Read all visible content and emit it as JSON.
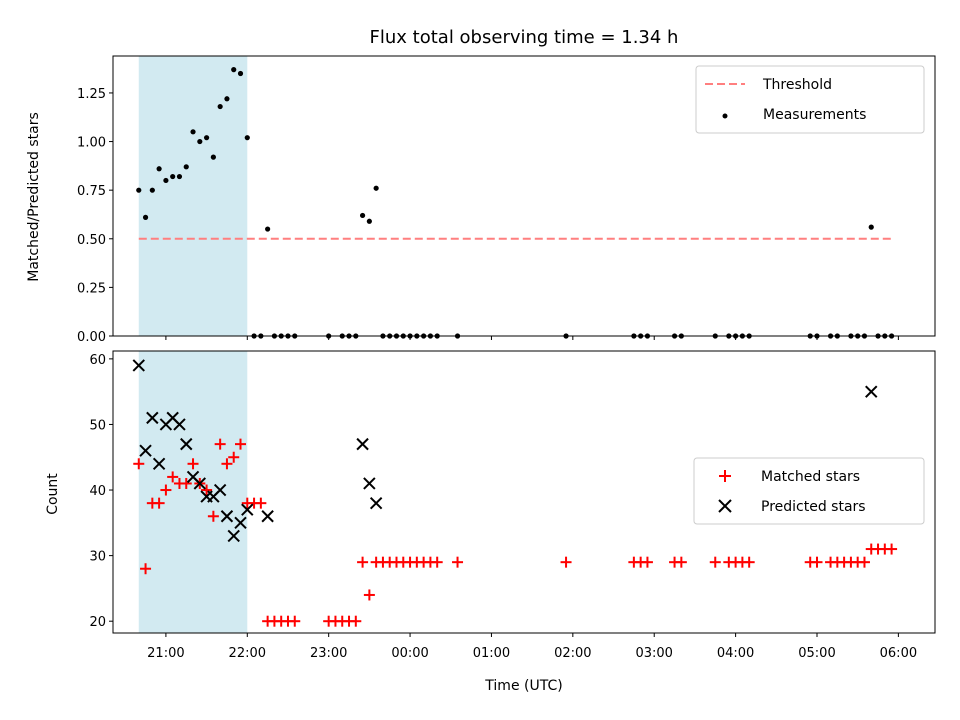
{
  "chart_data": [
    {
      "type": "scatter",
      "title": "Flux total observing time = 1.34 h",
      "xlabel": "",
      "ylabel": "Matched/Predicted stars",
      "ylim": [
        0,
        1.44
      ],
      "yticks": [
        "0.00",
        "0.25",
        "0.50",
        "0.75",
        "1.00",
        "1.25"
      ],
      "shaded_region": {
        "x_start": "20:40",
        "x_end": "22:00",
        "color": "#add8e6"
      },
      "threshold": {
        "name": "Threshold",
        "value": 0.5,
        "x_start": "20:40",
        "x_end": "05:55",
        "color": "#ff7f7f",
        "style": "dashed"
      },
      "series": [
        {
          "name": "Measurements",
          "color": "#000000",
          "marker": "dot",
          "points": [
            [
              "20:40",
              0.75
            ],
            [
              "20:45",
              0.61
            ],
            [
              "20:50",
              0.75
            ],
            [
              "20:55",
              0.86
            ],
            [
              "21:00",
              0.8
            ],
            [
              "21:05",
              0.82
            ],
            [
              "21:10",
              0.82
            ],
            [
              "21:15",
              0.87
            ],
            [
              "21:20",
              1.05
            ],
            [
              "21:25",
              1.0
            ],
            [
              "21:30",
              1.02
            ],
            [
              "21:35",
              0.92
            ],
            [
              "21:40",
              1.18
            ],
            [
              "21:45",
              1.22
            ],
            [
              "21:50",
              1.37
            ],
            [
              "21:55",
              1.35
            ],
            [
              "22:00",
              1.02
            ],
            [
              "22:05",
              0
            ],
            [
              "22:10",
              0
            ],
            [
              "22:15",
              0.55
            ],
            [
              "22:20",
              0
            ],
            [
              "22:25",
              0
            ],
            [
              "22:30",
              0
            ],
            [
              "22:35",
              0
            ],
            [
              "23:00",
              0
            ],
            [
              "23:10",
              0
            ],
            [
              "23:15",
              0
            ],
            [
              "23:20",
              0
            ],
            [
              "23:25",
              0.62
            ],
            [
              "23:30",
              0.59
            ],
            [
              "23:35",
              0.76
            ],
            [
              "23:40",
              0
            ],
            [
              "23:45",
              0
            ],
            [
              "23:50",
              0
            ],
            [
              "23:55",
              0
            ],
            [
              "00:00",
              0
            ],
            [
              "00:05",
              0
            ],
            [
              "00:10",
              0
            ],
            [
              "00:15",
              0
            ],
            [
              "00:20",
              0
            ],
            [
              "00:35",
              0
            ],
            [
              "01:55",
              0
            ],
            [
              "02:45",
              0
            ],
            [
              "02:50",
              0
            ],
            [
              "02:55",
              0
            ],
            [
              "03:15",
              0
            ],
            [
              "03:20",
              0
            ],
            [
              "03:45",
              0
            ],
            [
              "03:55",
              0
            ],
            [
              "04:00",
              0
            ],
            [
              "04:05",
              0
            ],
            [
              "04:10",
              0
            ],
            [
              "04:55",
              0
            ],
            [
              "05:00",
              0
            ],
            [
              "05:10",
              0
            ],
            [
              "05:15",
              0
            ],
            [
              "05:25",
              0
            ],
            [
              "05:30",
              0
            ],
            [
              "05:35",
              0
            ],
            [
              "05:40",
              0.56
            ],
            [
              "05:45",
              0
            ],
            [
              "05:50",
              0
            ],
            [
              "05:55",
              0
            ]
          ]
        }
      ],
      "legend": {
        "position": "top-right",
        "entries": [
          "Threshold",
          "Measurements"
        ]
      }
    },
    {
      "type": "scatter",
      "title": "",
      "xlabel": "Time (UTC)",
      "ylabel": "Count",
      "ylim": [
        18.2,
        61.2
      ],
      "yticks": [
        "20",
        "30",
        "40",
        "50",
        "60"
      ],
      "xticks": [
        "21:00",
        "22:00",
        "23:00",
        "00:00",
        "01:00",
        "02:00",
        "03:00",
        "04:00",
        "05:00",
        "06:00"
      ],
      "shaded_region": {
        "x_start": "20:40",
        "x_end": "22:00",
        "color": "#add8e6"
      },
      "series": [
        {
          "name": "Matched stars",
          "color": "#ff0000",
          "marker": "plus",
          "points": [
            [
              "20:40",
              44
            ],
            [
              "20:45",
              28
            ],
            [
              "20:50",
              38
            ],
            [
              "20:55",
              38
            ],
            [
              "21:00",
              40
            ],
            [
              "21:05",
              42
            ],
            [
              "21:10",
              41
            ],
            [
              "21:15",
              41
            ],
            [
              "21:20",
              44
            ],
            [
              "21:25",
              41
            ],
            [
              "21:30",
              40
            ],
            [
              "21:35",
              36
            ],
            [
              "21:40",
              47
            ],
            [
              "21:45",
              44
            ],
            [
              "21:50",
              45
            ],
            [
              "21:55",
              47
            ],
            [
              "22:00",
              38
            ],
            [
              "22:05",
              38
            ],
            [
              "22:10",
              38
            ],
            [
              "22:15",
              20
            ],
            [
              "22:20",
              20
            ],
            [
              "22:25",
              20
            ],
            [
              "22:30",
              20
            ],
            [
              "22:35",
              20
            ],
            [
              "23:00",
              20
            ],
            [
              "23:05",
              20
            ],
            [
              "23:10",
              20
            ],
            [
              "23:15",
              20
            ],
            [
              "23:20",
              20
            ],
            [
              "23:25",
              29
            ],
            [
              "23:30",
              24
            ],
            [
              "23:35",
              29
            ],
            [
              "23:40",
              29
            ],
            [
              "23:45",
              29
            ],
            [
              "23:50",
              29
            ],
            [
              "23:55",
              29
            ],
            [
              "00:00",
              29
            ],
            [
              "00:05",
              29
            ],
            [
              "00:10",
              29
            ],
            [
              "00:15",
              29
            ],
            [
              "00:20",
              29
            ],
            [
              "00:35",
              29
            ],
            [
              "01:55",
              29
            ],
            [
              "02:45",
              29
            ],
            [
              "02:50",
              29
            ],
            [
              "02:55",
              29
            ],
            [
              "03:15",
              29
            ],
            [
              "03:20",
              29
            ],
            [
              "03:45",
              29
            ],
            [
              "03:55",
              29
            ],
            [
              "04:00",
              29
            ],
            [
              "04:05",
              29
            ],
            [
              "04:10",
              29
            ],
            [
              "04:55",
              29
            ],
            [
              "05:00",
              29
            ],
            [
              "05:10",
              29
            ],
            [
              "05:15",
              29
            ],
            [
              "05:20",
              29
            ],
            [
              "05:25",
              29
            ],
            [
              "05:30",
              29
            ],
            [
              "05:35",
              29
            ],
            [
              "05:40",
              31
            ],
            [
              "05:45",
              31
            ],
            [
              "05:50",
              31
            ],
            [
              "05:55",
              31
            ]
          ]
        },
        {
          "name": "Predicted stars",
          "color": "#000000",
          "marker": "x",
          "points": [
            [
              "20:40",
              59
            ],
            [
              "20:45",
              46
            ],
            [
              "20:50",
              51
            ],
            [
              "20:55",
              44
            ],
            [
              "21:00",
              50
            ],
            [
              "21:05",
              51
            ],
            [
              "21:10",
              50
            ],
            [
              "21:15",
              47
            ],
            [
              "21:20",
              42
            ],
            [
              "21:25",
              41
            ],
            [
              "21:30",
              39
            ],
            [
              "21:35",
              39
            ],
            [
              "21:40",
              40
            ],
            [
              "21:45",
              36
            ],
            [
              "21:50",
              33
            ],
            [
              "21:55",
              35
            ],
            [
              "22:00",
              37
            ],
            [
              "22:15",
              36
            ],
            [
              "23:25",
              47
            ],
            [
              "23:30",
              41
            ],
            [
              "23:35",
              38
            ],
            [
              "05:40",
              55
            ]
          ]
        }
      ],
      "legend": {
        "position": "center-right",
        "entries": [
          "Matched stars",
          "Predicted stars"
        ]
      }
    }
  ]
}
